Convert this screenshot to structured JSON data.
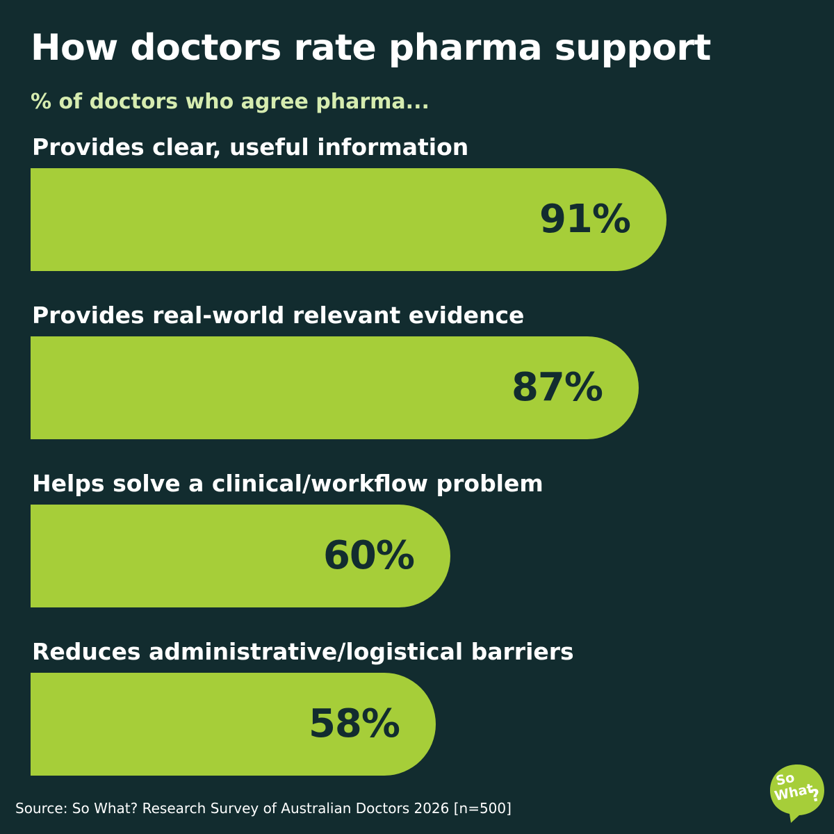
{
  "chart_data": {
    "type": "bar",
    "orientation": "horizontal",
    "title": "How doctors rate pharma support",
    "subtitle": "% of doctors who agree pharma...",
    "categories": [
      "Provides clear, useful information",
      "Provides real-world relevant evidence",
      "Helps solve a clinical/workflow problem",
      "Reduces administrative/logistical barriers"
    ],
    "values": [
      91,
      87,
      60,
      58
    ],
    "value_labels": [
      "91%",
      "87%",
      "60%",
      "58%"
    ],
    "xlim": [
      0,
      100
    ],
    "grid": false,
    "legend": "none"
  },
  "source": "Source: So What? Research Survey of Australian Doctors 2026 [n=500]",
  "logo": {
    "line1": "So",
    "line2": "What",
    "mark": "?"
  },
  "colors": {
    "background": "#122c2f",
    "bar": "#a6ce39",
    "subtitle": "#d6ecb0",
    "value_text": "#122c2f",
    "text": "#ffffff"
  }
}
